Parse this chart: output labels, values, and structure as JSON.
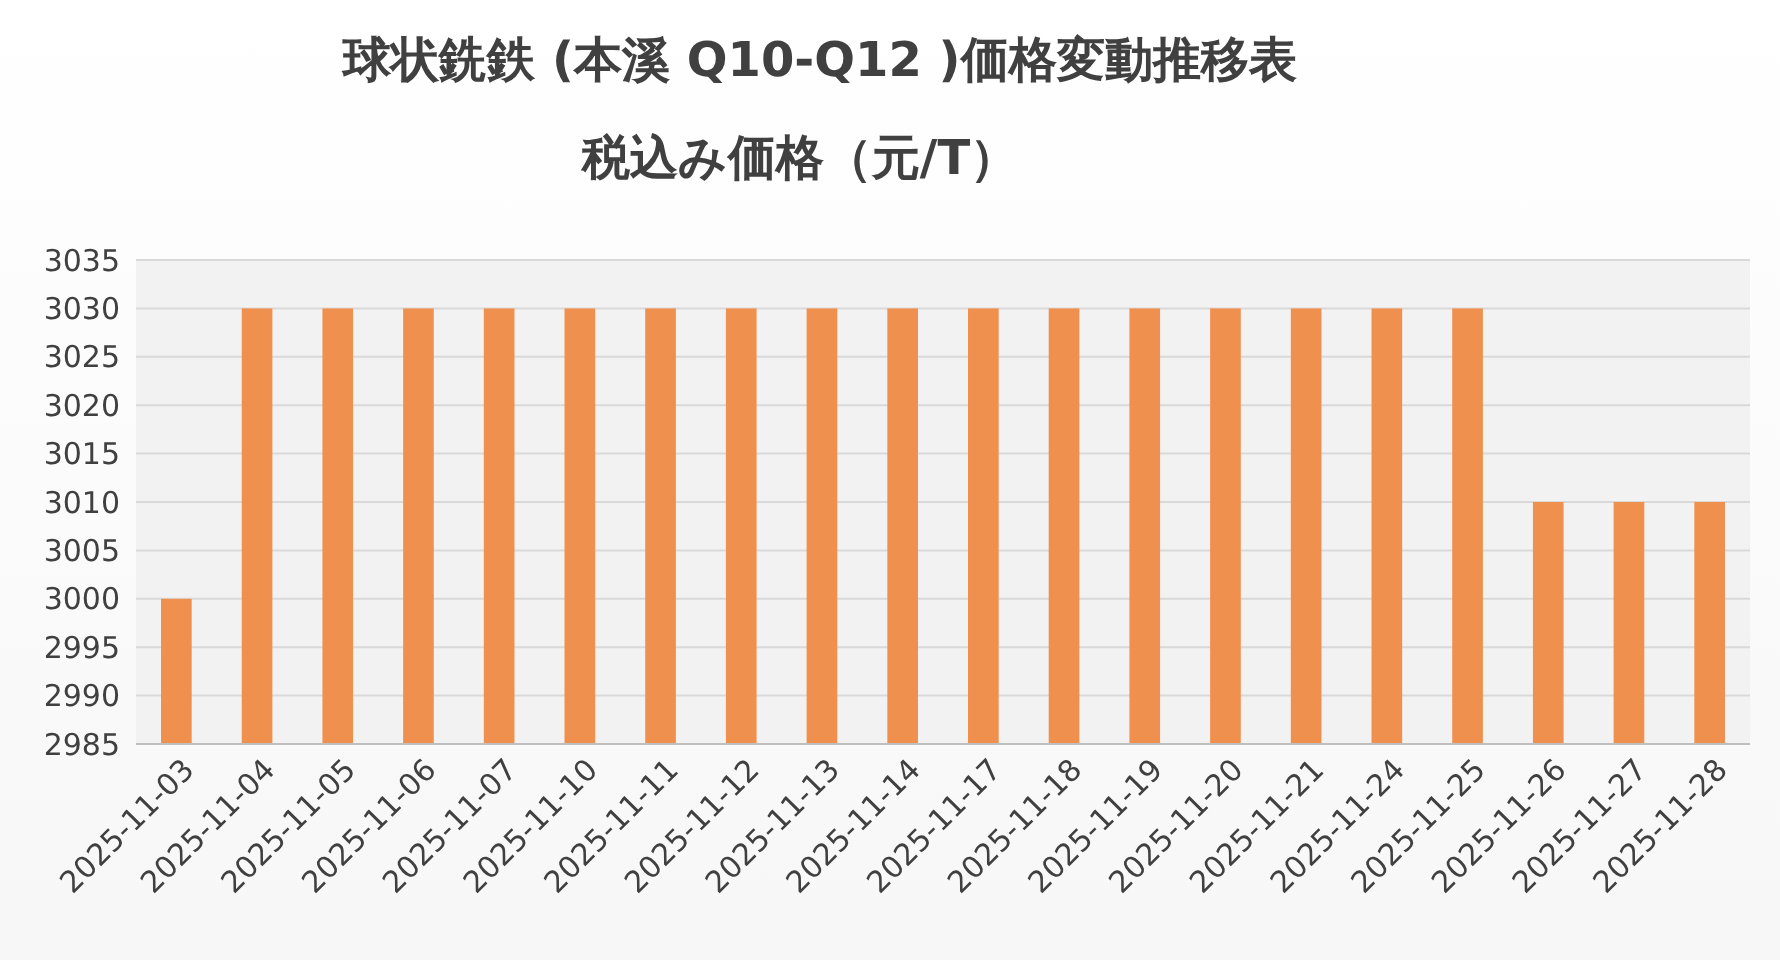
{
  "chart_data": {
    "type": "bar",
    "title": "球状銑鉄 (本溪 Q10-Q12 )価格変動推移表",
    "subtitle": "税込み価格（元/T）",
    "categories": [
      "2025-11-03",
      "2025-11-04",
      "2025-11-05",
      "2025-11-06",
      "2025-11-07",
      "2025-11-10",
      "2025-11-11",
      "2025-11-12",
      "2025-11-13",
      "2025-11-14",
      "2025-11-17",
      "2025-11-18",
      "2025-11-19",
      "2025-11-20",
      "2025-11-21",
      "2025-11-24",
      "2025-11-25",
      "2025-11-26",
      "2025-11-27",
      "2025-11-28"
    ],
    "values": [
      3000,
      3030,
      3030,
      3030,
      3030,
      3030,
      3030,
      3030,
      3030,
      3030,
      3030,
      3030,
      3030,
      3030,
      3030,
      3030,
      3030,
      3010,
      3010,
      3010
    ],
    "color": "#f0904f",
    "ylim": [
      2985,
      3035
    ],
    "yticks": [
      2985,
      2990,
      2995,
      3000,
      3005,
      3010,
      3015,
      3020,
      3025,
      3030,
      3035
    ],
    "grid": "y"
  }
}
